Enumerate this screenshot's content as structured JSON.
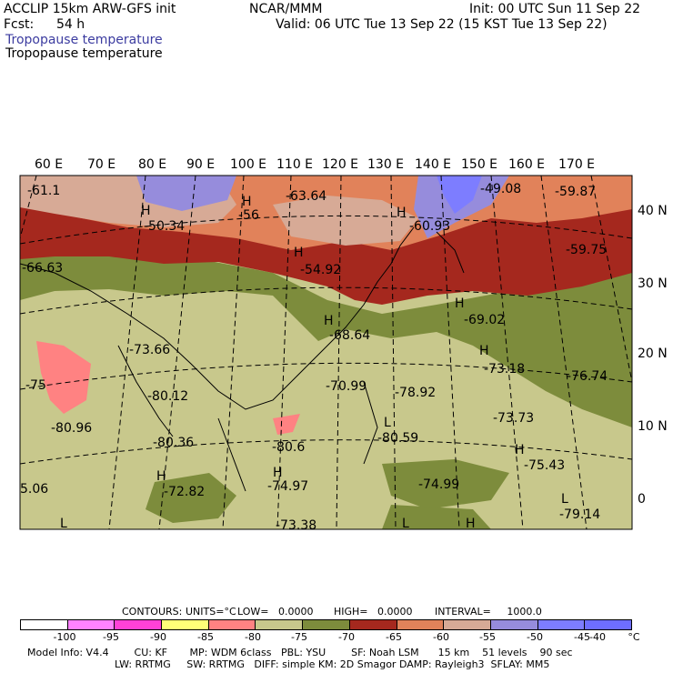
{
  "header": {
    "model": "ACCLIP 15km ARW-GFS init",
    "center": "NCAR/MMM",
    "init": "Init: 00 UTC Sun 11 Sep 22",
    "fcst_label": "Fcst:",
    "fcst_value": "54 h",
    "valid": "Valid: 06 UTC Tue 13 Sep 22 (15 KST Tue 13 Sep 22)",
    "field_title_1": "Tropopause temperature",
    "field_title_2": "Tropopause temperature"
  },
  "map": {
    "longitude_ticks": [
      "60 E",
      "70 E",
      "80 E",
      "90 E",
      "100 E",
      "110 E",
      "120 E",
      "130 E",
      "140 E",
      "150 E",
      "160 E",
      "170 E"
    ],
    "latitude_ticks": [
      "40 N",
      "30 N",
      "20 N",
      "10 N",
      "0"
    ],
    "contour_labels": [
      {
        "text": "-61.1"
      },
      {
        "text": "H"
      },
      {
        "text": "-50.34"
      },
      {
        "text": "H"
      },
      {
        "text": "-56"
      },
      {
        "text": "-63.64"
      },
      {
        "text": "H"
      },
      {
        "text": "-60.93"
      },
      {
        "text": "-49.08"
      },
      {
        "text": "-59.87"
      },
      {
        "text": "H"
      },
      {
        "text": "-54.92"
      },
      {
        "text": "-59.75"
      },
      {
        "text": "-66.63"
      },
      {
        "text": "H"
      },
      {
        "text": "-69.02"
      },
      {
        "text": "H"
      },
      {
        "text": "-68.64"
      },
      {
        "text": "-73.66"
      },
      {
        "text": "H"
      },
      {
        "text": "-73.18"
      },
      {
        "text": "-76.74"
      },
      {
        "text": "-75"
      },
      {
        "text": "-70.99"
      },
      {
        "text": "-80.12"
      },
      {
        "text": "-78.92"
      },
      {
        "text": "-73.73"
      },
      {
        "text": "-80.96"
      },
      {
        "text": "L"
      },
      {
        "text": "-80.36"
      },
      {
        "text": "-80.6"
      },
      {
        "text": "-80.59"
      },
      {
        "text": "H"
      },
      {
        "text": "-75.43"
      },
      {
        "text": "5.06"
      },
      {
        "text": "H"
      },
      {
        "text": "-72.82"
      },
      {
        "text": "-74.97"
      },
      {
        "text": "-74.99"
      },
      {
        "text": "L"
      },
      {
        "text": "-79.14"
      },
      {
        "text": "L"
      },
      {
        "text": "-73.38"
      },
      {
        "text": "H"
      },
      {
        "text": "H"
      },
      {
        "text": "L"
      }
    ]
  },
  "contours_line": {
    "contours": "CONTOURS:",
    "units": "UNITS=°C",
    "low": "LOW=   0.0000",
    "high": "HIGH=   0.0000",
    "interval": "INTERVAL=     1000.0"
  },
  "colorbar": {
    "colors": [
      "#ffffff",
      "#ff82ff",
      "#ff41d7",
      "#ffff78",
      "#ff8282",
      "#c8c88c",
      "#7d8c3c",
      "#a5281e",
      "#e1825a",
      "#d7aa96",
      "#968cdc",
      "#7d7dff",
      "#6e6eff"
    ],
    "labels": [
      "-100",
      "-95",
      "-90",
      "-85",
      "-80",
      "-75",
      "-70",
      "-65",
      "-60",
      "-55",
      "-50",
      "-45",
      "-40"
    ],
    "unit": "°C"
  },
  "footer": {
    "line1": "Model Info: V4.4        CU: KF       MP: WDM 6class   PBL: YSU        SF: Noah LSM      15 km    51 levels    90 sec",
    "line2": "LW: RRTMG     SW: RRTMG   DIFF: simple KM: 2D Smagor DAMP: Rayleigh3  SFLAY: MM5"
  }
}
